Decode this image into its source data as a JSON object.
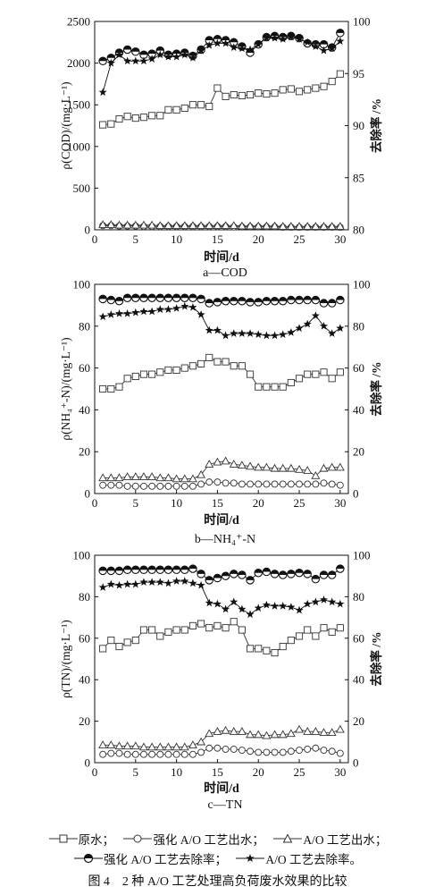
{
  "legend": {
    "raw": "原水；",
    "enh_eff": "强化 A/O 工艺出水；",
    "ao_eff": "A/O 工艺出水；",
    "enh_rem": "强化 A/O 工艺去除率；",
    "ao_rem": "A/O 工艺去除率。"
  },
  "figure_caption": "图 4　2 种 A/O 工艺处理高负荷废水效果的比较",
  "series_styles": {
    "raw": {
      "marker": "square",
      "color": "#333333"
    },
    "enhanced_effluent": {
      "marker": "circle",
      "color": "#333333"
    },
    "ao_effluent": {
      "marker": "triangle",
      "color": "#333333"
    },
    "enhanced_removal": {
      "marker": "circle-filled-top",
      "color": "#111111"
    },
    "ao_removal": {
      "marker": "star",
      "color": "#111111"
    }
  },
  "chart_data": [
    {
      "type": "line",
      "subtitle": "a—COD",
      "xlabel": "时间/d",
      "ylabel_left": "ρ(COD)/(mg·L⁻¹)",
      "ylabel_right": "去除率 /%",
      "xlim": [
        0,
        31
      ],
      "xticks": [
        "0",
        "5",
        "10",
        "15",
        "20",
        "25",
        "30"
      ],
      "ylim_left": [
        0,
        2500
      ],
      "yticks_left": [
        "0",
        "500",
        "1000",
        "1500",
        "2000",
        "2500"
      ],
      "ylim_right": [
        80,
        100
      ],
      "yticks_right": [
        "80",
        "85",
        "90",
        "95",
        "100"
      ],
      "x": [
        1,
        2,
        3,
        4,
        5,
        6,
        7,
        8,
        9,
        10,
        11,
        12,
        13,
        14,
        15,
        16,
        17,
        18,
        19,
        20,
        21,
        22,
        23,
        24,
        25,
        26,
        27,
        28,
        29,
        30
      ],
      "series": [
        {
          "name": "原水",
          "axis": "left",
          "values": [
            1260,
            1270,
            1330,
            1360,
            1340,
            1350,
            1370,
            1370,
            1440,
            1440,
            1460,
            1500,
            1500,
            1480,
            1700,
            1600,
            1620,
            1610,
            1620,
            1640,
            1630,
            1640,
            1680,
            1690,
            1660,
            1680,
            1700,
            1720,
            1780,
            1870
          ]
        },
        {
          "name": "强化 A/O 工艺出水",
          "axis": "left",
          "values": [
            50,
            50,
            45,
            45,
            45,
            40,
            40,
            40,
            40,
            40,
            40,
            40,
            40,
            40,
            40,
            40,
            35,
            35,
            35,
            35,
            35,
            35,
            30,
            30,
            30,
            30,
            30,
            30,
            30,
            30
          ]
        },
        {
          "name": "A/O 工艺出水",
          "axis": "left",
          "values": [
            60,
            60,
            55,
            55,
            55,
            55,
            55,
            50,
            50,
            50,
            50,
            50,
            50,
            50,
            50,
            50,
            50,
            45,
            45,
            45,
            45,
            45,
            40,
            40,
            40,
            40,
            40,
            40,
            40,
            40
          ]
        },
        {
          "name": "强化 A/O 工艺去除率",
          "axis": "right",
          "values": [
            96.2,
            96.5,
            97.0,
            97.3,
            97.1,
            96.8,
            96.9,
            97.2,
            96.8,
            96.9,
            97.0,
            96.7,
            97.3,
            98.2,
            98.3,
            98.2,
            98.0,
            97.6,
            97.0,
            97.8,
            98.5,
            98.6,
            98.5,
            98.6,
            98.4,
            97.9,
            97.8,
            97.8,
            97.5,
            98.9
          ]
        },
        {
          "name": "A/O 工艺去除率",
          "axis": "right",
          "values": [
            93.2,
            96.0,
            96.8,
            96.2,
            96.2,
            96.2,
            96.4,
            96.8,
            96.6,
            96.6,
            96.8,
            96.5,
            97.2,
            97.7,
            97.9,
            97.9,
            97.5,
            97.4,
            97.3,
            97.8,
            98.4,
            98.4,
            98.3,
            98.5,
            98.3,
            98.0,
            97.6,
            97.2,
            97.4,
            98.1
          ]
        }
      ]
    },
    {
      "type": "line",
      "subtitle": "b—NH₄⁺-N",
      "xlabel": "时间/d",
      "ylabel_left": "ρ(NH₄⁺-N)/(mg·L⁻¹)",
      "ylabel_right": "去除率 /%",
      "xlim": [
        0,
        31
      ],
      "xticks": [
        "0",
        "5",
        "10",
        "15",
        "20",
        "25",
        "30"
      ],
      "ylim_left": [
        0,
        100
      ],
      "yticks_left": [
        "0",
        "20",
        "40",
        "60",
        "80",
        "100"
      ],
      "ylim_right": [
        0,
        100
      ],
      "yticks_right": [
        "0",
        "20",
        "40",
        "60",
        "80",
        "100"
      ],
      "x": [
        1,
        2,
        3,
        4,
        5,
        6,
        7,
        8,
        9,
        10,
        11,
        12,
        13,
        14,
        15,
        16,
        17,
        18,
        19,
        20,
        21,
        22,
        23,
        24,
        25,
        26,
        27,
        28,
        29,
        30
      ],
      "series": [
        {
          "name": "原水",
          "axis": "left",
          "values": [
            50,
            50,
            51,
            55,
            56,
            57,
            57,
            58,
            59,
            59,
            60,
            61,
            62,
            65,
            63,
            63,
            61,
            61,
            57,
            51,
            51,
            51,
            51,
            53,
            55,
            57,
            57,
            58,
            55,
            58
          ]
        },
        {
          "name": "强化 A/O 工艺出水",
          "axis": "left",
          "values": [
            4,
            4,
            4,
            3.5,
            3.5,
            3.5,
            3.5,
            3.5,
            3.5,
            3.5,
            3.5,
            3.5,
            4.5,
            5.5,
            5.5,
            5,
            5,
            4.5,
            4.5,
            4.5,
            4.5,
            4.5,
            4.5,
            4.5,
            4.5,
            4.5,
            4.5,
            5,
            4.5,
            4
          ]
        },
        {
          "name": "A/O 工艺出水",
          "axis": "left",
          "values": [
            7.5,
            7.5,
            7.5,
            8,
            8,
            8,
            8,
            7.5,
            7.5,
            7,
            7,
            7,
            9,
            14,
            15,
            15.5,
            14,
            13.5,
            13,
            12.5,
            12.5,
            12,
            12,
            12,
            11.5,
            11,
            8.5,
            12,
            12.5,
            12.5
          ]
        },
        {
          "name": "强化 A/O 工艺去除率",
          "axis": "right",
          "values": [
            93,
            92.5,
            92,
            93.5,
            93.5,
            93.5,
            93.5,
            93.5,
            93.5,
            93.5,
            93.5,
            93.5,
            93,
            91,
            91.5,
            92,
            92,
            92,
            91.5,
            91.5,
            92,
            92,
            92,
            92.5,
            92.5,
            92.5,
            92.5,
            91,
            91,
            92.5
          ]
        },
        {
          "name": "A/O 工艺去除率",
          "axis": "right",
          "values": [
            84.5,
            85.5,
            86,
            86,
            86.5,
            87,
            87,
            88,
            88,
            88.5,
            89.5,
            89,
            85.5,
            78,
            78,
            75.5,
            76.5,
            76.5,
            76.5,
            76,
            75.5,
            75.5,
            76,
            77,
            79,
            81,
            85,
            80,
            76.5,
            79
          ]
        }
      ]
    },
    {
      "type": "line",
      "subtitle": "c—TN",
      "xlabel": "时间/d",
      "ylabel_left": "ρ(TN)/(mg·L⁻¹)",
      "ylabel_right": "去除率 /%",
      "xlim": [
        0,
        31
      ],
      "xticks": [
        "0",
        "5",
        "10",
        "15",
        "20",
        "25",
        "30"
      ],
      "ylim_left": [
        0,
        100
      ],
      "yticks_left": [
        "0",
        "20",
        "40",
        "60",
        "80",
        "100"
      ],
      "ylim_right": [
        0,
        100
      ],
      "yticks_right": [
        "0",
        "20",
        "40",
        "60",
        "80",
        "100"
      ],
      "x": [
        1,
        2,
        3,
        4,
        5,
        6,
        7,
        8,
        9,
        10,
        11,
        12,
        13,
        14,
        15,
        16,
        17,
        18,
        19,
        20,
        21,
        22,
        23,
        24,
        25,
        26,
        27,
        28,
        29,
        30
      ],
      "series": [
        {
          "name": "原水",
          "axis": "left",
          "values": [
            55,
            59,
            56,
            58,
            59,
            64,
            64,
            61,
            63,
            64,
            64,
            66,
            67,
            65,
            66,
            65,
            68,
            64,
            55,
            55,
            54,
            53,
            56,
            59,
            61,
            64,
            61,
            65,
            63,
            65
          ]
        },
        {
          "name": "强化 A/O 工艺出水",
          "axis": "left",
          "values": [
            4,
            4.5,
            4.5,
            4,
            4,
            4,
            4,
            4,
            4,
            4,
            4,
            4,
            5,
            7,
            7,
            6.5,
            6.5,
            6,
            5.5,
            5,
            5,
            5,
            5,
            5.5,
            6,
            6.5,
            7,
            6,
            5.5,
            4.5
          ]
        },
        {
          "name": "A/O 工艺出水",
          "axis": "left",
          "values": [
            8.5,
            8.5,
            8,
            8,
            8,
            7.5,
            7.5,
            7.5,
            7.5,
            7.5,
            7.5,
            8.5,
            10,
            14,
            15,
            15.5,
            15,
            15,
            13.5,
            13.5,
            13,
            13.5,
            13.5,
            14,
            16,
            15,
            15,
            14.5,
            14.5,
            16
          ]
        },
        {
          "name": "强化 A/O 工艺去除率",
          "axis": "right",
          "values": [
            92.5,
            92.5,
            92.5,
            93,
            93,
            93,
            93,
            93,
            93,
            93,
            93,
            93.5,
            91,
            88,
            89,
            90,
            91,
            90.5,
            88,
            91.5,
            92,
            91,
            90.5,
            91,
            91.5,
            91,
            88.5,
            90.5,
            90.5,
            93.5
          ]
        },
        {
          "name": "A/O 工艺去除率",
          "axis": "right",
          "values": [
            84.5,
            86,
            85.5,
            86,
            86,
            87,
            87,
            87,
            86.5,
            87.5,
            87.5,
            86.5,
            85.5,
            77,
            76.5,
            74,
            77.5,
            74,
            71.5,
            74.5,
            76,
            75.5,
            75.5,
            75,
            73.5,
            76.5,
            77.5,
            78.5,
            77.5,
            76.5
          ]
        }
      ]
    }
  ]
}
